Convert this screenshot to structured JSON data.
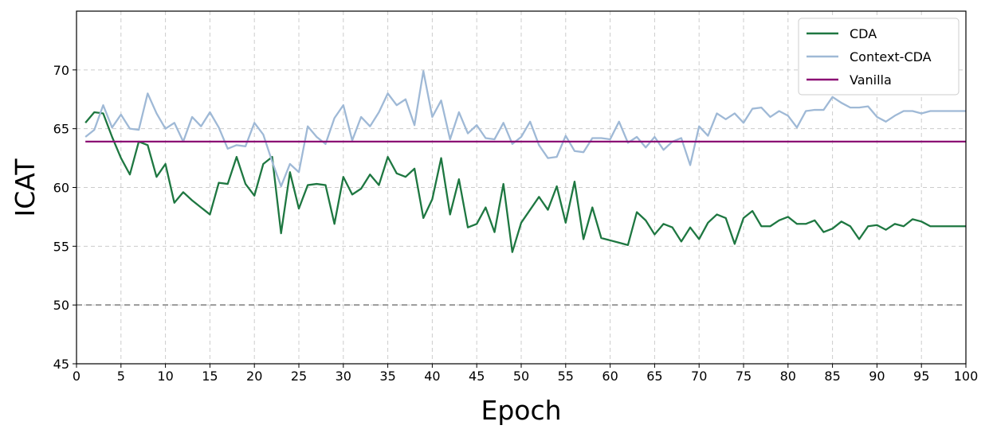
{
  "chart_data": {
    "type": "line",
    "title": "",
    "xlabel": "Epoch",
    "ylabel": "ICAT",
    "xlim": [
      0,
      100
    ],
    "ylim": [
      45,
      75
    ],
    "xticks": [
      0,
      5,
      10,
      15,
      20,
      25,
      30,
      35,
      40,
      45,
      50,
      55,
      60,
      65,
      70,
      75,
      80,
      85,
      90,
      95,
      100
    ],
    "yticks": [
      45,
      50,
      55,
      60,
      65,
      70
    ],
    "grid": true,
    "legend_position": "top-right",
    "series": [
      {
        "name": "CDA",
        "color": "#1e7741",
        "x": [
          1,
          2,
          3,
          4,
          5,
          6,
          7,
          8,
          9,
          10,
          11,
          12,
          13,
          14,
          15,
          16,
          17,
          18,
          19,
          20,
          21,
          22,
          23,
          24,
          25,
          26,
          27,
          28,
          29,
          30,
          31,
          32,
          33,
          34,
          35,
          36,
          37,
          38,
          39,
          40,
          41,
          42,
          43,
          44,
          45,
          46,
          47,
          48,
          49,
          50,
          51,
          52,
          53,
          54,
          55,
          56,
          57,
          58,
          59,
          60,
          61,
          62,
          63,
          64,
          65,
          66,
          67,
          68,
          69,
          70,
          71,
          72,
          73,
          74,
          75,
          76,
          77,
          78,
          79,
          80,
          81,
          82,
          83,
          84,
          85,
          86,
          87,
          88,
          89,
          90,
          91,
          92,
          93,
          94,
          95,
          96,
          97,
          98,
          99,
          100
        ],
        "y": [
          65.5,
          66.4,
          66.3,
          64.3,
          62.5,
          61.1,
          63.9,
          63.6,
          60.9,
          62,
          58.7,
          59.6,
          58.9,
          58.3,
          57.7,
          60.4,
          60.3,
          62.6,
          60.3,
          59.3,
          62,
          62.6,
          56.1,
          61.3,
          58.2,
          60.2,
          60.3,
          60.2,
          56.9,
          60.9,
          59.4,
          59.9,
          61.1,
          60.2,
          62.6,
          61.2,
          60.9,
          61.6,
          57.4,
          59,
          62.5,
          57.7,
          60.7,
          56.6,
          56.9,
          58.3,
          56.2,
          60.3,
          54.5,
          57,
          58.1,
          59.2,
          58.1,
          60.1,
          57,
          60.5,
          55.6,
          58.3,
          55.7,
          55.5,
          55.3,
          55.1,
          57.9,
          57.2,
          56,
          56.9,
          56.6,
          55.4,
          56.6,
          55.6,
          57,
          57.7,
          57.4,
          55.2,
          57.4,
          58,
          56.7,
          56.7,
          57.2,
          57.5,
          56.9,
          56.9,
          57.2,
          56.2,
          56.5,
          57.1,
          56.7,
          55.6,
          56.7,
          56.8,
          56.4,
          56.9,
          56.7,
          57.3,
          57.1,
          56.7,
          56.7,
          56.7,
          56.7,
          56.7
        ]
      },
      {
        "name": "Context-CDA",
        "color": "#9fb9d6",
        "x": [
          1,
          2,
          3,
          4,
          5,
          6,
          7,
          8,
          9,
          10,
          11,
          12,
          13,
          14,
          15,
          16,
          17,
          18,
          19,
          20,
          21,
          22,
          23,
          24,
          25,
          26,
          27,
          28,
          29,
          30,
          31,
          32,
          33,
          34,
          35,
          36,
          37,
          38,
          39,
          40,
          41,
          42,
          43,
          44,
          45,
          46,
          47,
          48,
          49,
          50,
          51,
          52,
          53,
          54,
          55,
          56,
          57,
          58,
          59,
          60,
          61,
          62,
          63,
          64,
          65,
          66,
          67,
          68,
          69,
          70,
          71,
          72,
          73,
          74,
          75,
          76,
          77,
          78,
          79,
          80,
          81,
          82,
          83,
          84,
          85,
          86,
          87,
          88,
          89,
          90,
          91,
          92,
          93,
          94,
          95,
          96,
          97,
          98,
          99,
          100
        ],
        "y": [
          64.3,
          64.9,
          67,
          65.1,
          66.2,
          65,
          64.9,
          68,
          66.3,
          65,
          65.5,
          63.9,
          66,
          65.2,
          66.4,
          65.1,
          63.3,
          63.6,
          63.5,
          65.5,
          64.5,
          62.2,
          60.1,
          62,
          61.3,
          65.2,
          64.3,
          63.7,
          65.9,
          67,
          64,
          66,
          65.2,
          66.4,
          68,
          67,
          67.5,
          65.3,
          69.9,
          66,
          67.4,
          64.1,
          66.4,
          64.6,
          65.3,
          64.2,
          64.1,
          65.5,
          63.7,
          64.3,
          65.6,
          63.6,
          62.5,
          62.6,
          64.4,
          63.1,
          63,
          64.2,
          64.2,
          64.1,
          65.6,
          63.8,
          64.3,
          63.4,
          64.3,
          63.2,
          63.9,
          64.2,
          61.9,
          65.2,
          64.4,
          66.3,
          65.8,
          66.3,
          65.5,
          66.7,
          66.8,
          66,
          66.5,
          66.1,
          65.1,
          66.5,
          66.6,
          66.6,
          67.7,
          67.2,
          66.8,
          66.8,
          66.9,
          66,
          65.6,
          66.1,
          66.5,
          66.5,
          66.3,
          66.5,
          66.5,
          66.5,
          66.5,
          66.5
        ]
      },
      {
        "name": "Vanilla",
        "color": "#8b0f74",
        "x": [
          1,
          100
        ],
        "y": [
          63.9,
          63.9
        ]
      }
    ],
    "reference_line": {
      "y": 50,
      "color": "#999999",
      "dashed": true
    }
  }
}
